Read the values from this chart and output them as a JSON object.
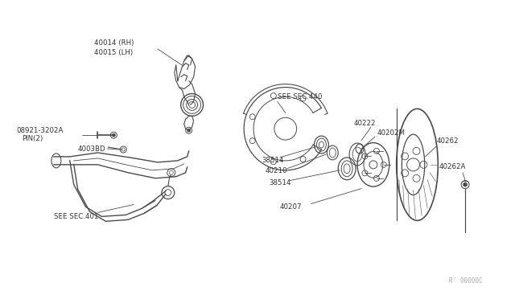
{
  "bg_color": "#ffffff",
  "line_color": "#4a4a4a",
  "text_color": "#333333",
  "watermark": "R' 00000C",
  "labels": {
    "part1": "40014 (RH)",
    "part1b": "40015 (LH)",
    "part2": "08921-3202A",
    "part2b": "PIN(2)",
    "part3": "4003BD",
    "part4": "SEE SEC.401",
    "part5": "SEE SEC.440",
    "part6a": "38514",
    "part6b": "40210",
    "part6c": "38514",
    "part7": "40222",
    "part8": "40202M",
    "part9": "40262",
    "part10": "40262A",
    "part11": "40207"
  }
}
